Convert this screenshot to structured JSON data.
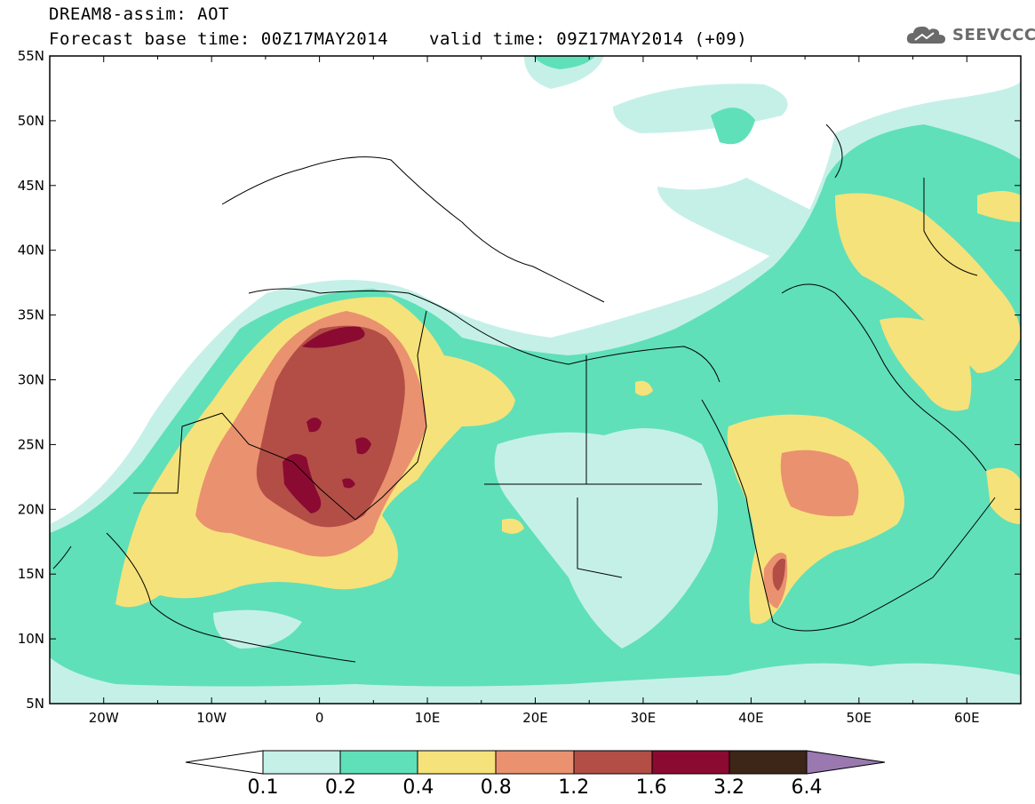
{
  "header": {
    "line1": "DREAM8-assim: AOT",
    "line2_base": "Forecast base time: 00Z17MAY2014",
    "line2_valid": "valid time: 09Z17MAY2014 (+09)",
    "logo_text": "SEEVCCC",
    "logo_icon": "cloud-icon"
  },
  "map": {
    "variable": "AOT",
    "lon_range": [
      -25,
      65
    ],
    "lat_range": [
      5,
      55
    ],
    "lon_ticks": [
      {
        "lon": -20,
        "label": "20W"
      },
      {
        "lon": -10,
        "label": "10W"
      },
      {
        "lon": 0,
        "label": "0"
      },
      {
        "lon": 10,
        "label": "10E"
      },
      {
        "lon": 20,
        "label": "20E"
      },
      {
        "lon": 30,
        "label": "30E"
      },
      {
        "lon": 40,
        "label": "40E"
      },
      {
        "lon": 50,
        "label": "50E"
      },
      {
        "lon": 60,
        "label": "60E"
      }
    ],
    "lat_ticks": [
      {
        "lat": 55,
        "label": "55N"
      },
      {
        "lat": 50,
        "label": "50N"
      },
      {
        "lat": 45,
        "label": "45N"
      },
      {
        "lat": 40,
        "label": "40N"
      },
      {
        "lat": 35,
        "label": "35N"
      },
      {
        "lat": 30,
        "label": "30N"
      },
      {
        "lat": 25,
        "label": "25N"
      },
      {
        "lat": 20,
        "label": "20N"
      },
      {
        "lat": 15,
        "label": "15N"
      },
      {
        "lat": 10,
        "label": "10N"
      },
      {
        "lat": 5,
        "label": "5N"
      }
    ]
  },
  "colorbar": {
    "thresholds": [
      "0.1",
      "0.2",
      "0.4",
      "0.8",
      "1.2",
      "1.6",
      "3.2",
      "6.4"
    ],
    "colors": {
      "below": "#ffffff",
      "c1": "#c5f0e8",
      "c2": "#5fe0b9",
      "c3": "#f6e27a",
      "c4": "#ea9170",
      "c5": "#b24e46",
      "c6": "#8b0a31",
      "c7": "#3d2617",
      "above": "#9a78b0"
    }
  }
}
